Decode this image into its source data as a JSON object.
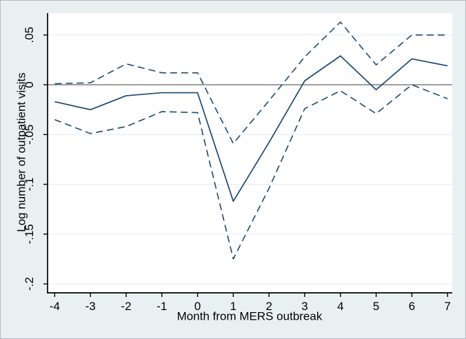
{
  "figure": {
    "background": "#e9f0f2",
    "plot_background": "#ffffff",
    "border_color": "#b4babd",
    "grid_color": "#e2ecef",
    "axis_color": "#000000",
    "zero_line_color": "#636363",
    "series_color": "#1a476f",
    "text_color": "#000000"
  },
  "chart_data": {
    "type": "line",
    "title": "",
    "xlabel": "Month from MERS outbreak",
    "ylabel": "Log number of outpatient visits",
    "x": [
      -4,
      -3,
      -2,
      -1,
      0,
      1,
      2,
      3,
      4,
      5,
      6,
      7
    ],
    "series": [
      {
        "name": "Point estimate",
        "style": "solid",
        "values": [
          -0.017,
          -0.025,
          -0.011,
          -0.008,
          -0.008,
          -0.117,
          -0.058,
          0.004,
          0.029,
          -0.005,
          0.026,
          0.019
        ]
      },
      {
        "name": "95% CI upper bound",
        "style": "dashed",
        "values": [
          0.001,
          0.002,
          0.021,
          0.012,
          0.012,
          -0.059,
          -0.016,
          0.028,
          0.063,
          0.02,
          0.05,
          0.05
        ]
      },
      {
        "name": "95% CI lower bound",
        "style": "dashed",
        "values": [
          -0.035,
          -0.049,
          -0.042,
          -0.027,
          -0.028,
          -0.175,
          -0.104,
          -0.024,
          -0.006,
          -0.029,
          0.0,
          -0.014
        ]
      }
    ],
    "yticks": [
      {
        "label": ".05",
        "value": 0.05
      },
      {
        "label": "0",
        "value": 0
      },
      {
        "label": "-.05",
        "value": -0.05
      },
      {
        "label": "-.1",
        "value": -0.1
      },
      {
        "label": "-.15",
        "value": -0.15
      },
      {
        "label": "-.2",
        "value": -0.2
      }
    ],
    "xticks": [
      {
        "label": "-4",
        "value": -4
      },
      {
        "label": "-3",
        "value": -3
      },
      {
        "label": "-2",
        "value": -2
      },
      {
        "label": "-1",
        "value": -1
      },
      {
        "label": "0",
        "value": 0
      },
      {
        "label": "1",
        "value": 1
      },
      {
        "label": "2",
        "value": 2
      },
      {
        "label": "3",
        "value": 3
      },
      {
        "label": "4",
        "value": 4
      },
      {
        "label": "5",
        "value": 5
      },
      {
        "label": "6",
        "value": 6
      },
      {
        "label": "7",
        "value": 7
      },
      {
        "label": "7",
        "value": 7
      }
    ],
    "ref_line_y": 0,
    "ylim": [
      -0.209,
      0.072
    ],
    "xlim": [
      -4.2,
      7.13
    ],
    "grid": "horizontal",
    "legend": "none"
  }
}
